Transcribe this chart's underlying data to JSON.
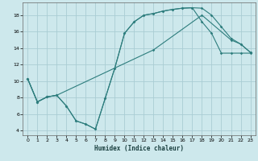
{
  "xlabel": "Humidex (Indice chaleur)",
  "bg_color": "#cde8ec",
  "grid_color": "#aacdd4",
  "line_color": "#2d7d7d",
  "xlim": [
    -0.5,
    23.5
  ],
  "ylim": [
    3.5,
    19.5
  ],
  "xticks": [
    0,
    1,
    2,
    3,
    4,
    5,
    6,
    7,
    8,
    9,
    10,
    11,
    12,
    13,
    14,
    15,
    16,
    17,
    18,
    19,
    20,
    21,
    22,
    23
  ],
  "yticks": [
    4,
    6,
    8,
    10,
    12,
    14,
    16,
    18
  ],
  "curve_a_x": [
    0,
    1,
    2,
    3,
    4,
    5,
    6,
    7,
    8,
    9,
    10,
    11,
    12,
    13,
    14,
    15,
    16,
    17,
    18,
    19,
    20,
    21,
    22,
    23
  ],
  "curve_a_y": [
    10.3,
    7.5,
    8.1,
    8.3,
    7.0,
    5.2,
    4.8,
    4.2,
    7.9,
    11.6,
    15.8,
    17.2,
    18.0,
    18.2,
    18.5,
    18.7,
    18.85,
    18.9,
    18.85,
    18.0,
    16.6,
    15.2,
    14.5,
    13.5
  ],
  "curve_b_x": [
    0,
    1,
    2,
    3,
    4,
    5,
    6,
    7,
    8,
    9,
    10,
    11,
    12,
    13,
    14,
    15,
    16,
    17,
    18,
    19,
    20,
    21,
    22,
    23
  ],
  "curve_b_y": [
    10.3,
    7.5,
    8.1,
    8.3,
    7.0,
    5.2,
    4.8,
    4.2,
    7.9,
    11.6,
    15.8,
    17.2,
    18.0,
    18.2,
    18.5,
    18.7,
    18.85,
    18.9,
    17.2,
    15.8,
    13.4,
    13.4,
    13.4,
    13.4
  ],
  "curve_c_x": [
    0,
    1,
    2,
    3,
    13,
    18,
    21,
    22,
    23
  ],
  "curve_c_y": [
    10.3,
    7.5,
    8.1,
    8.3,
    13.8,
    18.0,
    15.0,
    14.5,
    13.5
  ]
}
